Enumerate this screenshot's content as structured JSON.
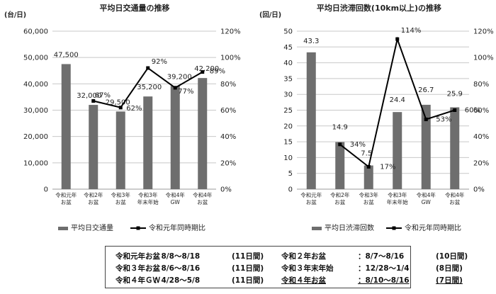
{
  "chart_data": [
    {
      "type": "bar",
      "title": "平均日交通量の推移",
      "ylabel": "(台/日)",
      "ylim": [
        0,
        60000
      ],
      "yticks": [
        "0",
        "10,000",
        "20,000",
        "30,000",
        "40,000",
        "50,000",
        "60,000"
      ],
      "y2lim": [
        0,
        120
      ],
      "y2ticks": [
        "0%",
        "20%",
        "40%",
        "60%",
        "80%",
        "100%",
        "120%"
      ],
      "categories": [
        [
          "令和元年",
          "お盆"
        ],
        [
          "令和2年",
          "お盆"
        ],
        [
          "令和3年",
          "お盆"
        ],
        [
          "令和3年",
          "年末年始"
        ],
        [
          "令和4年",
          "GW"
        ],
        [
          "令和4年",
          "お盆"
        ]
      ],
      "series": [
        {
          "name": "平均日交通量",
          "kind": "bar",
          "axis": "left",
          "values": [
            47500,
            32000,
            29500,
            35200,
            39200,
            42200
          ],
          "labels": [
            "47,500",
            "32,000",
            "29,500",
            "35,200",
            "39,200",
            "42,200"
          ]
        },
        {
          "name": "令和元年同時期比",
          "kind": "line",
          "axis": "right",
          "values": [
            null,
            67,
            62,
            92,
            77,
            89
          ],
          "labels": [
            "",
            "67%",
            "62%",
            "92%",
            "77%",
            "89%"
          ]
        }
      ],
      "legend": "bottom"
    },
    {
      "type": "bar",
      "title": "平均日渋滞回数(10km以上)の推移",
      "ylabel": "(回/日)",
      "ylim": [
        0,
        50
      ],
      "yticks": [
        "0",
        "5",
        "10",
        "15",
        "20",
        "25",
        "30",
        "35",
        "40",
        "45",
        "50"
      ],
      "y2lim": [
        0,
        120
      ],
      "y2ticks": [
        "0%",
        "20%",
        "40%",
        "60%",
        "80%",
        "100%",
        "120%"
      ],
      "categories": [
        [
          "令和元年",
          "お盆"
        ],
        [
          "令和2年",
          "お盆"
        ],
        [
          "令和3年",
          "お盆"
        ],
        [
          "令和3年",
          "年末年始"
        ],
        [
          "令和4年",
          "GW"
        ],
        [
          "令和4年",
          "お盆"
        ]
      ],
      "series": [
        {
          "name": "平均日渋滞回数",
          "kind": "bar",
          "axis": "left",
          "values": [
            43.3,
            14.9,
            7.5,
            24.4,
            26.7,
            25.9
          ],
          "labels": [
            "43.3",
            "14.9",
            "7.5",
            "24.4",
            "26.7",
            "25.9"
          ]
        },
        {
          "name": "令和元年同時期比",
          "kind": "line",
          "axis": "right",
          "values": [
            null,
            34,
            17,
            114,
            53,
            60
          ],
          "labels": [
            "",
            "34%",
            "17%",
            "114%",
            "53%",
            "60%"
          ]
        }
      ],
      "legend": "bottom"
    }
  ],
  "periods": [
    [
      "令和元年お盆",
      "：8/8～8/18",
      "(11日間)",
      "令和２年お盆",
      "：8/7～8/16",
      "(10日間)"
    ],
    [
      "令和３年お盆",
      "：8/6～8/16",
      "(11日間)",
      "令和３年末年始",
      "：12/28～1/4",
      "(8日間)"
    ],
    [
      "令和４年ＧＷ",
      "：4/28～5/8",
      "(11日間)",
      "令和４年お盆",
      "：8/10～8/16",
      "(7日間)"
    ]
  ]
}
